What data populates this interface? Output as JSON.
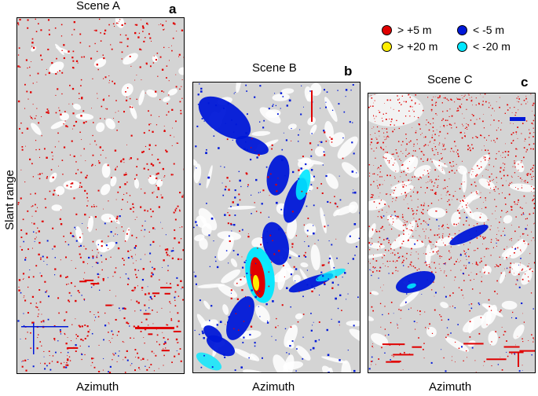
{
  "panels": [
    {
      "title": "Scene A",
      "letter": "a",
      "xlabel": "Azimuth"
    },
    {
      "title": "Scene B",
      "letter": "b",
      "xlabel": "Azimuth"
    },
    {
      "title": "Scene C",
      "letter": "c",
      "xlabel": "Azimuth"
    }
  ],
  "ylabel": "Slant range",
  "legend": [
    {
      "label": "> +5 m",
      "color": "#e00000"
    },
    {
      "label": "< -5 m",
      "color": "#0018d8"
    },
    {
      "label": "> +20 m",
      "color": "#ffee00"
    },
    {
      "label": "< -20 m",
      "color": "#00e8ff"
    }
  ]
}
